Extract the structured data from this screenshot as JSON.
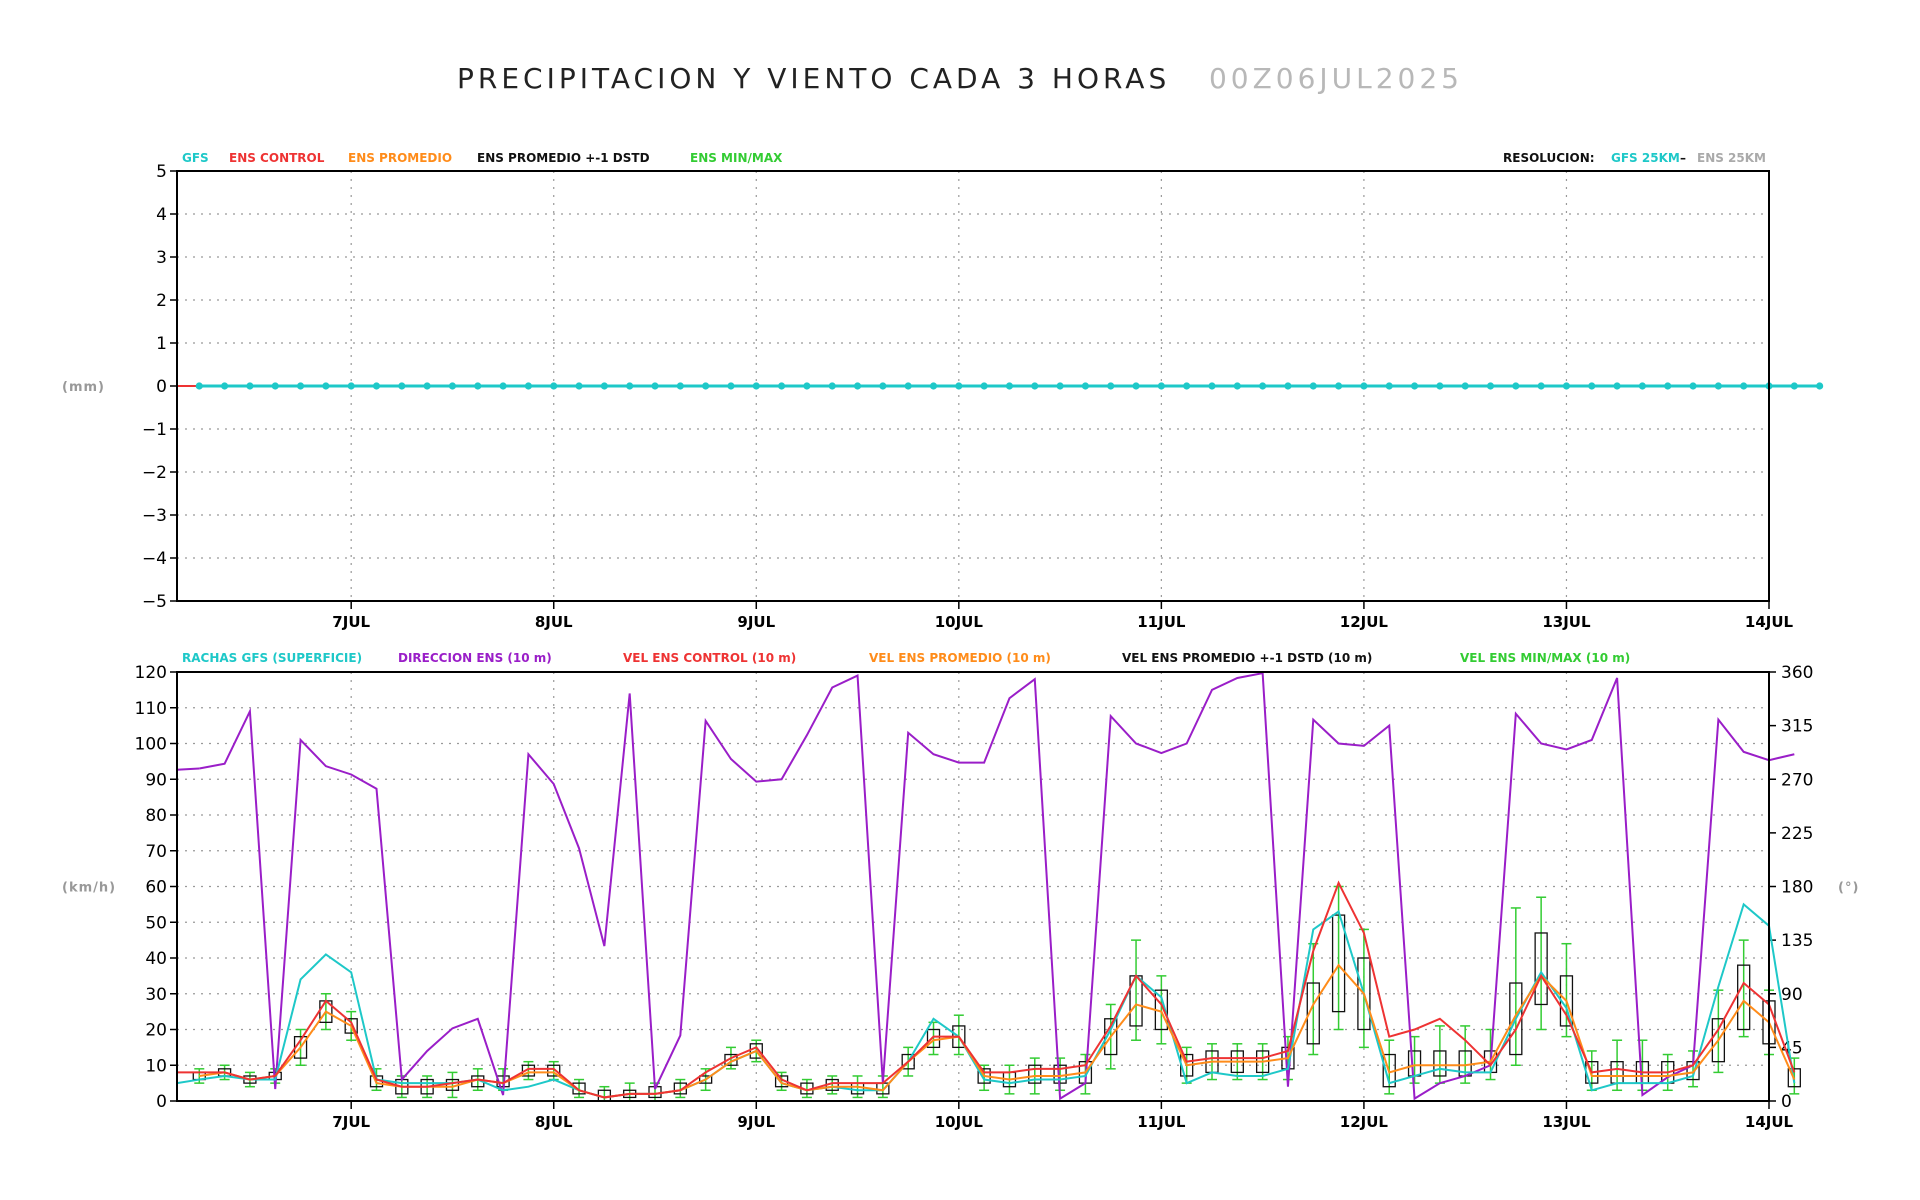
{
  "title": "PRECIPITACION Y VIENTO CADA 3 HORAS",
  "run_date": "00Z06JUL2025",
  "colors": {
    "gfs": "#1ec8c8",
    "ens_control": "#ee3333",
    "ens_promedio": "#ff8c1a",
    "ens_std": "#111111",
    "ens_minmax": "#33cc33",
    "direccion": "#9a1ec8",
    "res_ens": "#aaaaaa"
  },
  "chart_data": [
    {
      "type": "line",
      "panel": "precipitation",
      "legend": [
        "GFS",
        "ENS CONTROL",
        "ENS PROMEDIO",
        "ENS PROMEDIO +-1 DSTD",
        "ENS MIN/MAX"
      ],
      "resolution_label": "RESOLUCION:",
      "resolution_gfs": "GFS 25KM",
      "resolution_ens": "ENS 25KM",
      "ylabel": "(mm)",
      "ylim": [
        -5,
        5
      ],
      "yticks": [
        "5",
        "4",
        "3",
        "2",
        "1",
        "0",
        "−1",
        "−2",
        "−3",
        "−4",
        "−5"
      ],
      "xticks": [
        "7JUL",
        "8JUL",
        "9JUL",
        "10JUL",
        "11JUL",
        "12JUL",
        "13JUL",
        "14JUL"
      ],
      "series": [
        {
          "name": "GFS",
          "values": [
            0,
            0,
            0,
            0,
            0,
            0,
            0,
            0,
            0,
            0,
            0,
            0,
            0,
            0,
            0,
            0,
            0,
            0,
            0,
            0,
            0,
            0,
            0,
            0,
            0,
            0,
            0,
            0,
            0,
            0,
            0,
            0,
            0,
            0,
            0,
            0,
            0,
            0,
            0,
            0,
            0,
            0,
            0,
            0,
            0,
            0,
            0,
            0,
            0,
            0,
            0,
            0,
            0,
            0,
            0,
            0,
            0,
            0,
            0,
            0,
            0,
            0,
            0,
            0,
            0
          ]
        },
        {
          "name": "ENS CONTROL",
          "values": [
            0,
            0,
            0,
            0,
            0,
            0,
            0,
            0,
            0,
            0,
            0,
            0,
            0,
            0,
            0,
            0,
            0,
            0,
            0,
            0,
            0,
            0,
            0,
            0,
            0,
            0,
            0,
            0,
            0,
            0,
            0,
            0,
            0,
            0,
            0,
            0,
            0,
            0,
            0,
            0,
            0,
            0,
            0,
            0,
            0,
            0,
            0,
            0,
            0,
            0,
            0,
            0,
            0,
            0,
            0,
            0,
            0,
            0,
            0,
            0,
            0,
            0,
            0,
            0,
            0
          ]
        }
      ]
    },
    {
      "type": "line",
      "panel": "wind",
      "legend": [
        "RACHAS GFS (SUPERFICIE)",
        "DIRECCION ENS (10 m)",
        "VEL ENS CONTROL (10 m)",
        "VEL ENS PROMEDIO (10 m)",
        "VEL ENS PROMEDIO +-1 DSTD (10 m)",
        "VEL ENS MIN/MAX (10 m)"
      ],
      "ylabel": "(km/h)",
      "y2label": "(°)",
      "ylim": [
        0,
        120
      ],
      "y2lim": [
        0,
        360
      ],
      "yticks": [
        "120",
        "110",
        "100",
        "90",
        "80",
        "70",
        "60",
        "50",
        "40",
        "30",
        "20",
        "10",
        "0"
      ],
      "y2ticks": [
        "360",
        "315",
        "270",
        "225",
        "180",
        "135",
        "90",
        "45",
        "0"
      ],
      "xticks": [
        "7JUL",
        "8JUL",
        "9JUL",
        "10JUL",
        "11JUL",
        "12JUL",
        "13JUL",
        "14JUL"
      ],
      "x_step_hours": 3,
      "series": [
        {
          "name": "RACHAS GFS (SUPERFICIE)",
          "values": [
            6,
            7,
            6,
            6,
            34,
            41,
            36,
            6,
            5,
            5,
            5,
            6,
            3,
            4,
            6,
            3,
            1,
            2,
            2,
            3,
            6,
            11,
            14,
            5,
            3,
            4,
            3,
            3,
            11,
            23,
            18,
            6,
            5,
            6,
            6,
            7,
            20,
            35,
            29,
            5,
            8,
            7,
            7,
            9,
            48,
            53,
            30,
            5,
            7,
            9,
            8,
            8,
            23,
            36,
            26,
            3,
            5,
            5,
            5,
            7,
            32,
            55,
            49,
            5
          ]
        },
        {
          "name": "DIRECCION ENS (10 m)",
          "values": [
            279,
            283,
            327,
            10,
            303,
            281,
            274,
            262,
            18,
            42,
            61,
            69,
            5,
            291,
            266,
            212,
            130,
            342,
            10,
            55,
            319,
            287,
            268,
            270,
            307,
            347,
            357,
            15,
            309,
            291,
            284,
            284,
            338,
            354,
            2,
            15,
            323,
            300,
            292,
            300,
            345,
            355,
            359,
            12,
            320,
            300,
            298,
            315,
            2,
            15,
            21,
            30,
            325,
            300,
            295,
            303,
            355,
            5,
            20,
            30,
            320,
            293,
            286,
            291
          ]
        },
        {
          "name": "VEL ENS CONTROL (10 m)",
          "values": [
            8,
            8,
            6,
            7,
            17,
            28,
            22,
            6,
            4,
            4,
            5,
            6,
            5,
            9,
            9,
            3,
            1,
            2,
            2,
            3,
            8,
            12,
            15,
            6,
            3,
            5,
            5,
            5,
            11,
            18,
            18,
            8,
            8,
            9,
            9,
            10,
            21,
            35,
            27,
            11,
            12,
            12,
            12,
            14,
            42,
            61,
            47,
            18,
            20,
            23,
            17,
            10,
            20,
            35,
            24,
            8,
            9,
            8,
            8,
            10,
            20,
            33,
            27,
            8
          ]
        },
        {
          "name": "VEL ENS PROMEDIO (10 m)",
          "values": [
            7,
            8,
            6,
            7,
            15,
            25,
            21,
            5,
            4,
            4,
            4,
            6,
            5,
            8,
            8,
            3,
            1,
            2,
            2,
            3,
            6,
            11,
            14,
            5,
            3,
            4,
            4,
            3,
            11,
            17,
            18,
            7,
            6,
            7,
            7,
            8,
            18,
            27,
            25,
            10,
            11,
            11,
            11,
            12,
            27,
            38,
            30,
            8,
            10,
            10,
            10,
            11,
            24,
            35,
            28,
            7,
            7,
            7,
            7,
            8,
            17,
            28,
            22,
            6
          ]
        },
        {
          "name": "VEL ENS PROMEDIO +-1 DSTD (10 m)",
          "values": [
            {
              "lo": 6,
              "hi": 8
            },
            {
              "lo": 7,
              "hi": 9
            },
            {
              "lo": 5,
              "hi": 7
            },
            {
              "lo": 6,
              "hi": 8
            },
            {
              "lo": 12,
              "hi": 18
            },
            {
              "lo": 22,
              "hi": 28
            },
            {
              "lo": 19,
              "hi": 23
            },
            {
              "lo": 4,
              "hi": 7
            },
            {
              "lo": 2,
              "hi": 6
            },
            {
              "lo": 2,
              "hi": 6
            },
            {
              "lo": 3,
              "hi": 6
            },
            {
              "lo": 4,
              "hi": 7
            },
            {
              "lo": 4,
              "hi": 7
            },
            {
              "lo": 7,
              "hi": 10
            },
            {
              "lo": 7,
              "hi": 10
            },
            {
              "lo": 2,
              "hi": 5
            },
            {
              "lo": 0,
              "hi": 3
            },
            {
              "lo": 1,
              "hi": 3
            },
            {
              "lo": 1,
              "hi": 4
            },
            {
              "lo": 2,
              "hi": 5
            },
            {
              "lo": 5,
              "hi": 7
            },
            {
              "lo": 10,
              "hi": 13
            },
            {
              "lo": 12,
              "hi": 16
            },
            {
              "lo": 4,
              "hi": 7
            },
            {
              "lo": 2,
              "hi": 5
            },
            {
              "lo": 3,
              "hi": 6
            },
            {
              "lo": 2,
              "hi": 5
            },
            {
              "lo": 2,
              "hi": 5
            },
            {
              "lo": 9,
              "hi": 13
            },
            {
              "lo": 15,
              "hi": 20
            },
            {
              "lo": 15,
              "hi": 21
            },
            {
              "lo": 5,
              "hi": 9
            },
            {
              "lo": 4,
              "hi": 8
            },
            {
              "lo": 5,
              "hi": 10
            },
            {
              "lo": 5,
              "hi": 10
            },
            {
              "lo": 5,
              "hi": 11
            },
            {
              "lo": 13,
              "hi": 23
            },
            {
              "lo": 21,
              "hi": 35
            },
            {
              "lo": 20,
              "hi": 31
            },
            {
              "lo": 7,
              "hi": 13
            },
            {
              "lo": 8,
              "hi": 14
            },
            {
              "lo": 8,
              "hi": 14
            },
            {
              "lo": 8,
              "hi": 14
            },
            {
              "lo": 9,
              "hi": 15
            },
            {
              "lo": 16,
              "hi": 33
            },
            {
              "lo": 25,
              "hi": 52
            },
            {
              "lo": 20,
              "hi": 40
            },
            {
              "lo": 4,
              "hi": 13
            },
            {
              "lo": 7,
              "hi": 14
            },
            {
              "lo": 7,
              "hi": 14
            },
            {
              "lo": 7,
              "hi": 14
            },
            {
              "lo": 8,
              "hi": 14
            },
            {
              "lo": 13,
              "hi": 33
            },
            {
              "lo": 27,
              "hi": 47
            },
            {
              "lo": 21,
              "hi": 35
            },
            {
              "lo": 5,
              "hi": 11
            },
            {
              "lo": 5,
              "hi": 11
            },
            {
              "lo": 5,
              "hi": 11
            },
            {
              "lo": 5,
              "hi": 11
            },
            {
              "lo": 6,
              "hi": 11
            },
            {
              "lo": 11,
              "hi": 23
            },
            {
              "lo": 20,
              "hi": 38
            },
            {
              "lo": 16,
              "hi": 28
            },
            {
              "lo": 4,
              "hi": 9
            }
          ]
        },
        {
          "name": "VEL ENS MIN/MAX (10 m)",
          "values": [
            {
              "lo": 5,
              "hi": 9
            },
            {
              "lo": 6,
              "hi": 10
            },
            {
              "lo": 4,
              "hi": 8
            },
            {
              "lo": 5,
              "hi": 9
            },
            {
              "lo": 10,
              "hi": 20
            },
            {
              "lo": 20,
              "hi": 30
            },
            {
              "lo": 17,
              "hi": 25
            },
            {
              "lo": 3,
              "hi": 9
            },
            {
              "lo": 1,
              "hi": 7
            },
            {
              "lo": 1,
              "hi": 7
            },
            {
              "lo": 1,
              "hi": 8
            },
            {
              "lo": 3,
              "hi": 9
            },
            {
              "lo": 3,
              "hi": 9
            },
            {
              "lo": 6,
              "hi": 11
            },
            {
              "lo": 6,
              "hi": 11
            },
            {
              "lo": 1,
              "hi": 6
            },
            {
              "lo": 0,
              "hi": 4
            },
            {
              "lo": 0,
              "hi": 5
            },
            {
              "lo": 0,
              "hi": 5
            },
            {
              "lo": 1,
              "hi": 6
            },
            {
              "lo": 3,
              "hi": 9
            },
            {
              "lo": 9,
              "hi": 15
            },
            {
              "lo": 11,
              "hi": 17
            },
            {
              "lo": 3,
              "hi": 8
            },
            {
              "lo": 1,
              "hi": 6
            },
            {
              "lo": 2,
              "hi": 7
            },
            {
              "lo": 1,
              "hi": 7
            },
            {
              "lo": 1,
              "hi": 7
            },
            {
              "lo": 7,
              "hi": 15
            },
            {
              "lo": 13,
              "hi": 22
            },
            {
              "lo": 13,
              "hi": 24
            },
            {
              "lo": 3,
              "hi": 10
            },
            {
              "lo": 2,
              "hi": 10
            },
            {
              "lo": 2,
              "hi": 12
            },
            {
              "lo": 3,
              "hi": 12
            },
            {
              "lo": 2,
              "hi": 13
            },
            {
              "lo": 9,
              "hi": 27
            },
            {
              "lo": 17,
              "hi": 45
            },
            {
              "lo": 16,
              "hi": 35
            },
            {
              "lo": 5,
              "hi": 15
            },
            {
              "lo": 6,
              "hi": 16
            },
            {
              "lo": 6,
              "hi": 16
            },
            {
              "lo": 6,
              "hi": 16
            },
            {
              "lo": 6,
              "hi": 18
            },
            {
              "lo": 13,
              "hi": 44
            },
            {
              "lo": 20,
              "hi": 60
            },
            {
              "lo": 15,
              "hi": 48
            },
            {
              "lo": 2,
              "hi": 17
            },
            {
              "lo": 5,
              "hi": 18
            },
            {
              "lo": 5,
              "hi": 21
            },
            {
              "lo": 5,
              "hi": 21
            },
            {
              "lo": 6,
              "hi": 20
            },
            {
              "lo": 10,
              "hi": 54
            },
            {
              "lo": 20,
              "hi": 57
            },
            {
              "lo": 18,
              "hi": 44
            },
            {
              "lo": 3,
              "hi": 14
            },
            {
              "lo": 3,
              "hi": 17
            },
            {
              "lo": 3,
              "hi": 17
            },
            {
              "lo": 3,
              "hi": 13
            },
            {
              "lo": 4,
              "hi": 14
            },
            {
              "lo": 8,
              "hi": 31
            },
            {
              "lo": 18,
              "hi": 45
            },
            {
              "lo": 13,
              "hi": 31
            },
            {
              "lo": 2,
              "hi": 12
            }
          ]
        }
      ]
    }
  ]
}
